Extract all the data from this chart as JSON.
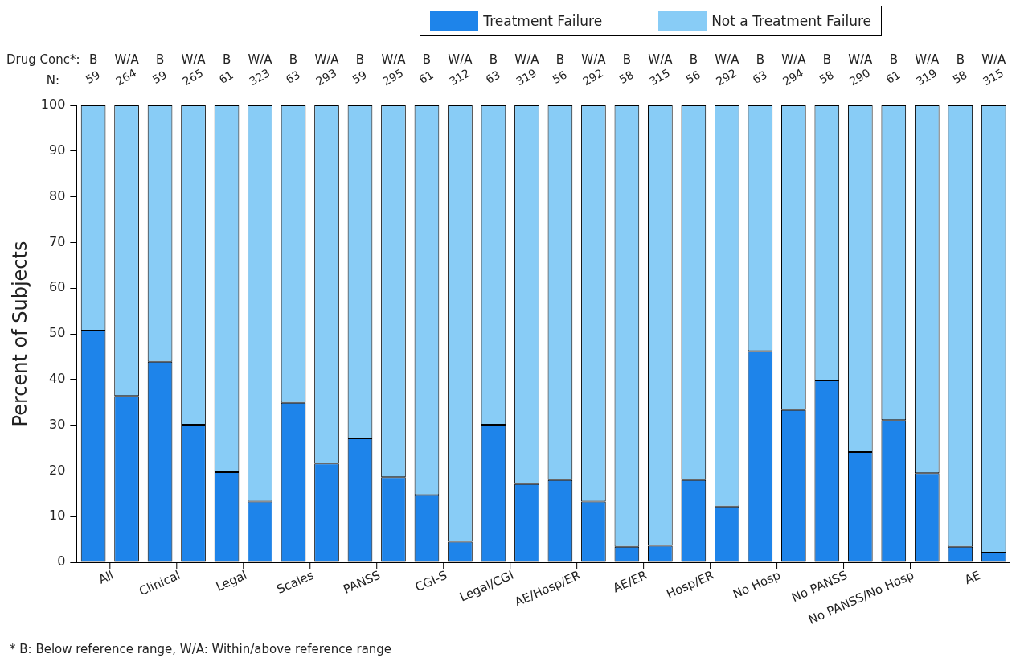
{
  "chart_data": {
    "type": "bar",
    "stacked": true,
    "ylabel": "Percent of Subjects",
    "ylim": [
      0,
      100
    ],
    "yticks": [
      0,
      10,
      20,
      30,
      40,
      50,
      60,
      70,
      80,
      90,
      100
    ],
    "grid": false,
    "legend": "top right",
    "categories": [
      "B",
      "W/A",
      "B",
      "W/A",
      "B",
      "W/A",
      "B",
      "W/A",
      "B",
      "W/A",
      "B",
      "W/A",
      "B",
      "W/A",
      "B",
      "W/A",
      "B",
      "W/A",
      "B",
      "W/A",
      "B",
      "W/A",
      "B",
      "W/A",
      "B",
      "W/A",
      "B",
      "W/A"
    ],
    "series": [
      {
        "name": "Treatment Failure",
        "color": "#1e84ea",
        "values": [
          50.7,
          36.4,
          43.9,
          30.1,
          19.7,
          13.3,
          34.9,
          21.6,
          27.1,
          18.6,
          14.7,
          4.5,
          30.1,
          17.1,
          18.0,
          13.3,
          3.4,
          3.6,
          18.0,
          12.2,
          46.2,
          33.3,
          39.8,
          24.1,
          31.1,
          19.5,
          3.4,
          2.1
        ]
      },
      {
        "name": "Not a Treatment Failure",
        "color": "#88ccf6",
        "values": [
          49.3,
          63.6,
          56.1,
          69.9,
          80.3,
          86.7,
          65.1,
          78.4,
          72.9,
          81.4,
          85.3,
          95.5,
          69.9,
          82.9,
          82.0,
          86.7,
          96.6,
          96.4,
          82.0,
          87.8,
          53.8,
          66.7,
          60.2,
          75.9,
          68.9,
          80.5,
          96.6,
          97.9
        ]
      }
    ],
    "annotations": [
      "All",
      "Clinical",
      "Legal",
      "Scales",
      "PANSS",
      "CGI-S",
      "Legal/CGI",
      "AE/Hosp/ER",
      "AE/ER",
      "Hosp/ER",
      "No Hosp",
      "No PANSS",
      "No PANSS/No Hosp",
      "AE",
      "Drug Conc*:",
      "N:",
      "59",
      "264",
      "59",
      "265",
      "61",
      "323",
      "63",
      "293",
      "59",
      "295",
      "61",
      "312",
      "63",
      "319",
      "56",
      "292",
      "58",
      "315",
      "56",
      "292",
      "63",
      "294",
      "58",
      "290",
      "61",
      "319",
      "58",
      "315",
      "* B: Below reference range, W/A: Within/above reference range"
    ]
  }
}
